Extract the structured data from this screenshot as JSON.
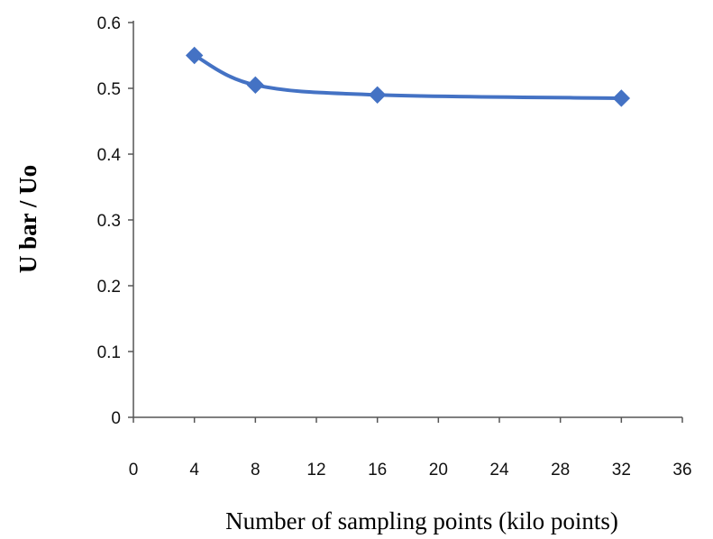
{
  "chart_data": {
    "type": "line",
    "xlabel": "Number of sampling points (kilo points)",
    "ylabel": "U bar / Uo",
    "xlim": [
      0,
      36
    ],
    "ylim": [
      0,
      0.6
    ],
    "x_ticks": [
      "0",
      "4",
      "8",
      "12",
      "16",
      "20",
      "24",
      "28",
      "32",
      "36"
    ],
    "y_ticks": [
      "0",
      "0.1",
      "0.2",
      "0.3",
      "0.4",
      "0.5",
      "0.6"
    ],
    "series": [
      {
        "x": [
          4,
          8,
          16,
          32
        ],
        "values": [
          0.55,
          0.505,
          0.49,
          0.485
        ],
        "color": "#4472C4",
        "marker": "diamond",
        "smooth": true
      }
    ],
    "grid": false,
    "legend": "none"
  }
}
